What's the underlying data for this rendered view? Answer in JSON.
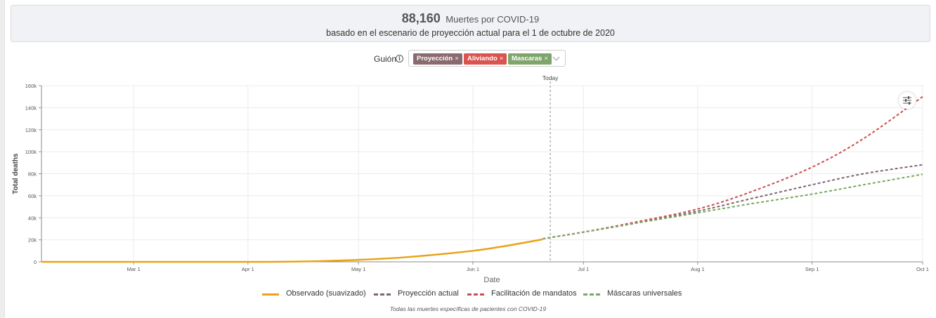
{
  "summary": {
    "value": "88,160",
    "unit": "Muertes por COVID-19",
    "subtitle": "basado en el escenario de proyección actual para el 1 de octubre de 2020"
  },
  "scenario_selector": {
    "label": "Guión",
    "info_icon": "info-circle-icon",
    "dropdown_icon": "chevron-down-icon",
    "tags": [
      {
        "label": "Proyección",
        "color": "#8a6a6d"
      },
      {
        "label": "Aliviando",
        "color": "#d9534f"
      },
      {
        "label": "Mascaras",
        "color": "#7fa56c"
      }
    ],
    "remove_glyph": "×"
  },
  "settings_icon": "sliders-icon",
  "footnote": "Todas las muertes específicas de pacientes con COVID-19",
  "chart_data": {
    "type": "line",
    "xlabel": "Date",
    "ylabel": "Total deaths",
    "x_domain": [
      "2020-02-05",
      "2020-10-01"
    ],
    "ylim": [
      0,
      160000
    ],
    "y_ticks": [
      0,
      20000,
      40000,
      60000,
      80000,
      100000,
      120000,
      140000,
      160000
    ],
    "y_tick_labels": [
      "0",
      "20k",
      "40k",
      "60k",
      "80k",
      "100k",
      "120k",
      "140k",
      "160k"
    ],
    "x_ticks": [
      "2020-03-01",
      "2020-04-01",
      "2020-05-01",
      "2020-06-01",
      "2020-07-01",
      "2020-08-01",
      "2020-09-01",
      "2020-10-01"
    ],
    "x_tick_labels": [
      "Mar 1",
      "Apr 1",
      "May 1",
      "Jun 1",
      "Jul 1",
      "Aug 1",
      "Sep 1",
      "Oct 1"
    ],
    "grid": true,
    "legend_position": "bottom",
    "today": {
      "date": "2020-06-22",
      "label": "Today"
    },
    "series": [
      {
        "name": "Observado (suavizado)",
        "color": "#e8a317",
        "style": "solid",
        "x": [
          "2020-02-05",
          "2020-03-01",
          "2020-04-01",
          "2020-04-15",
          "2020-05-01",
          "2020-05-15",
          "2020-06-01",
          "2020-06-10",
          "2020-06-20"
        ],
        "y": [
          0,
          0,
          0,
          300,
          1800,
          4500,
          10000,
          14500,
          20500
        ]
      },
      {
        "name": "Proyección actual",
        "color": "#7d6670",
        "style": "dashed",
        "x": [
          "2020-06-20",
          "2020-07-01",
          "2020-07-15",
          "2020-08-01",
          "2020-08-15",
          "2020-09-01",
          "2020-09-15",
          "2020-10-01"
        ],
        "y": [
          21000,
          27000,
          35000,
          46000,
          57000,
          70000,
          80000,
          88160
        ]
      },
      {
        "name": "Facilitación de mandatos",
        "color": "#c94f4f",
        "style": "dashed",
        "x": [
          "2020-06-20",
          "2020-07-01",
          "2020-07-15",
          "2020-08-01",
          "2020-08-15",
          "2020-09-01",
          "2020-09-15",
          "2020-10-01"
        ],
        "y": [
          21000,
          27000,
          36000,
          48000,
          63000,
          86000,
          112000,
          150000
        ]
      },
      {
        "name": "Máscaras universales",
        "color": "#78a860",
        "style": "dashed",
        "x": [
          "2020-06-20",
          "2020-07-01",
          "2020-07-15",
          "2020-08-01",
          "2020-08-15",
          "2020-09-01",
          "2020-09-15",
          "2020-10-01"
        ],
        "y": [
          21000,
          27000,
          35000,
          44500,
          52500,
          61500,
          70000,
          79500
        ]
      }
    ]
  }
}
